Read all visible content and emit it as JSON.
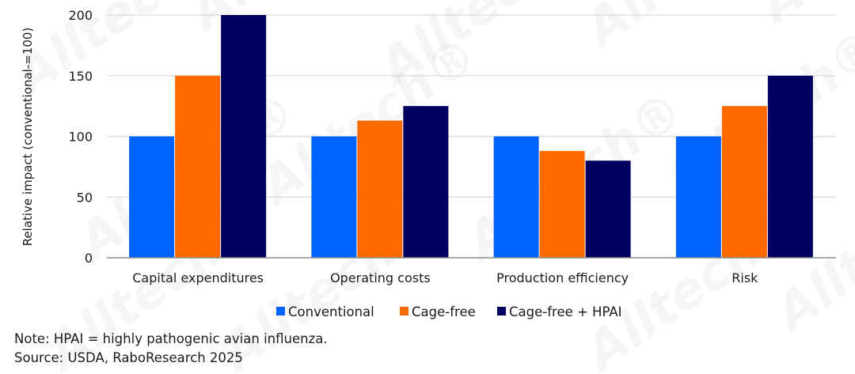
{
  "chart_data": {
    "type": "bar",
    "title": "",
    "xlabel": "",
    "ylabel": "Relative impact (conventional-=100)",
    "ylim": [
      0,
      200
    ],
    "yticks": [
      0,
      50,
      100,
      150,
      200
    ],
    "grid": true,
    "legend_position": "bottom-center",
    "categories": [
      "Capital expenditures",
      "Operating costs",
      "Production efficiency",
      "Risk"
    ],
    "series": [
      {
        "name": "Conventional",
        "color": "#0062ff",
        "values": [
          100,
          100,
          100,
          100
        ]
      },
      {
        "name": "Cage-free",
        "color": "#ff6a00",
        "values": [
          150,
          113,
          88,
          125
        ]
      },
      {
        "name": "Cage-free + HPAI",
        "color": "#000060",
        "values": [
          200,
          125,
          80,
          150
        ]
      }
    ]
  },
  "notes": {
    "note": "Note: HPAI = highly pathogenic avian influenza.",
    "source": "Source: USDA, RaboResearch 2025"
  },
  "watermark": "Alltech®"
}
